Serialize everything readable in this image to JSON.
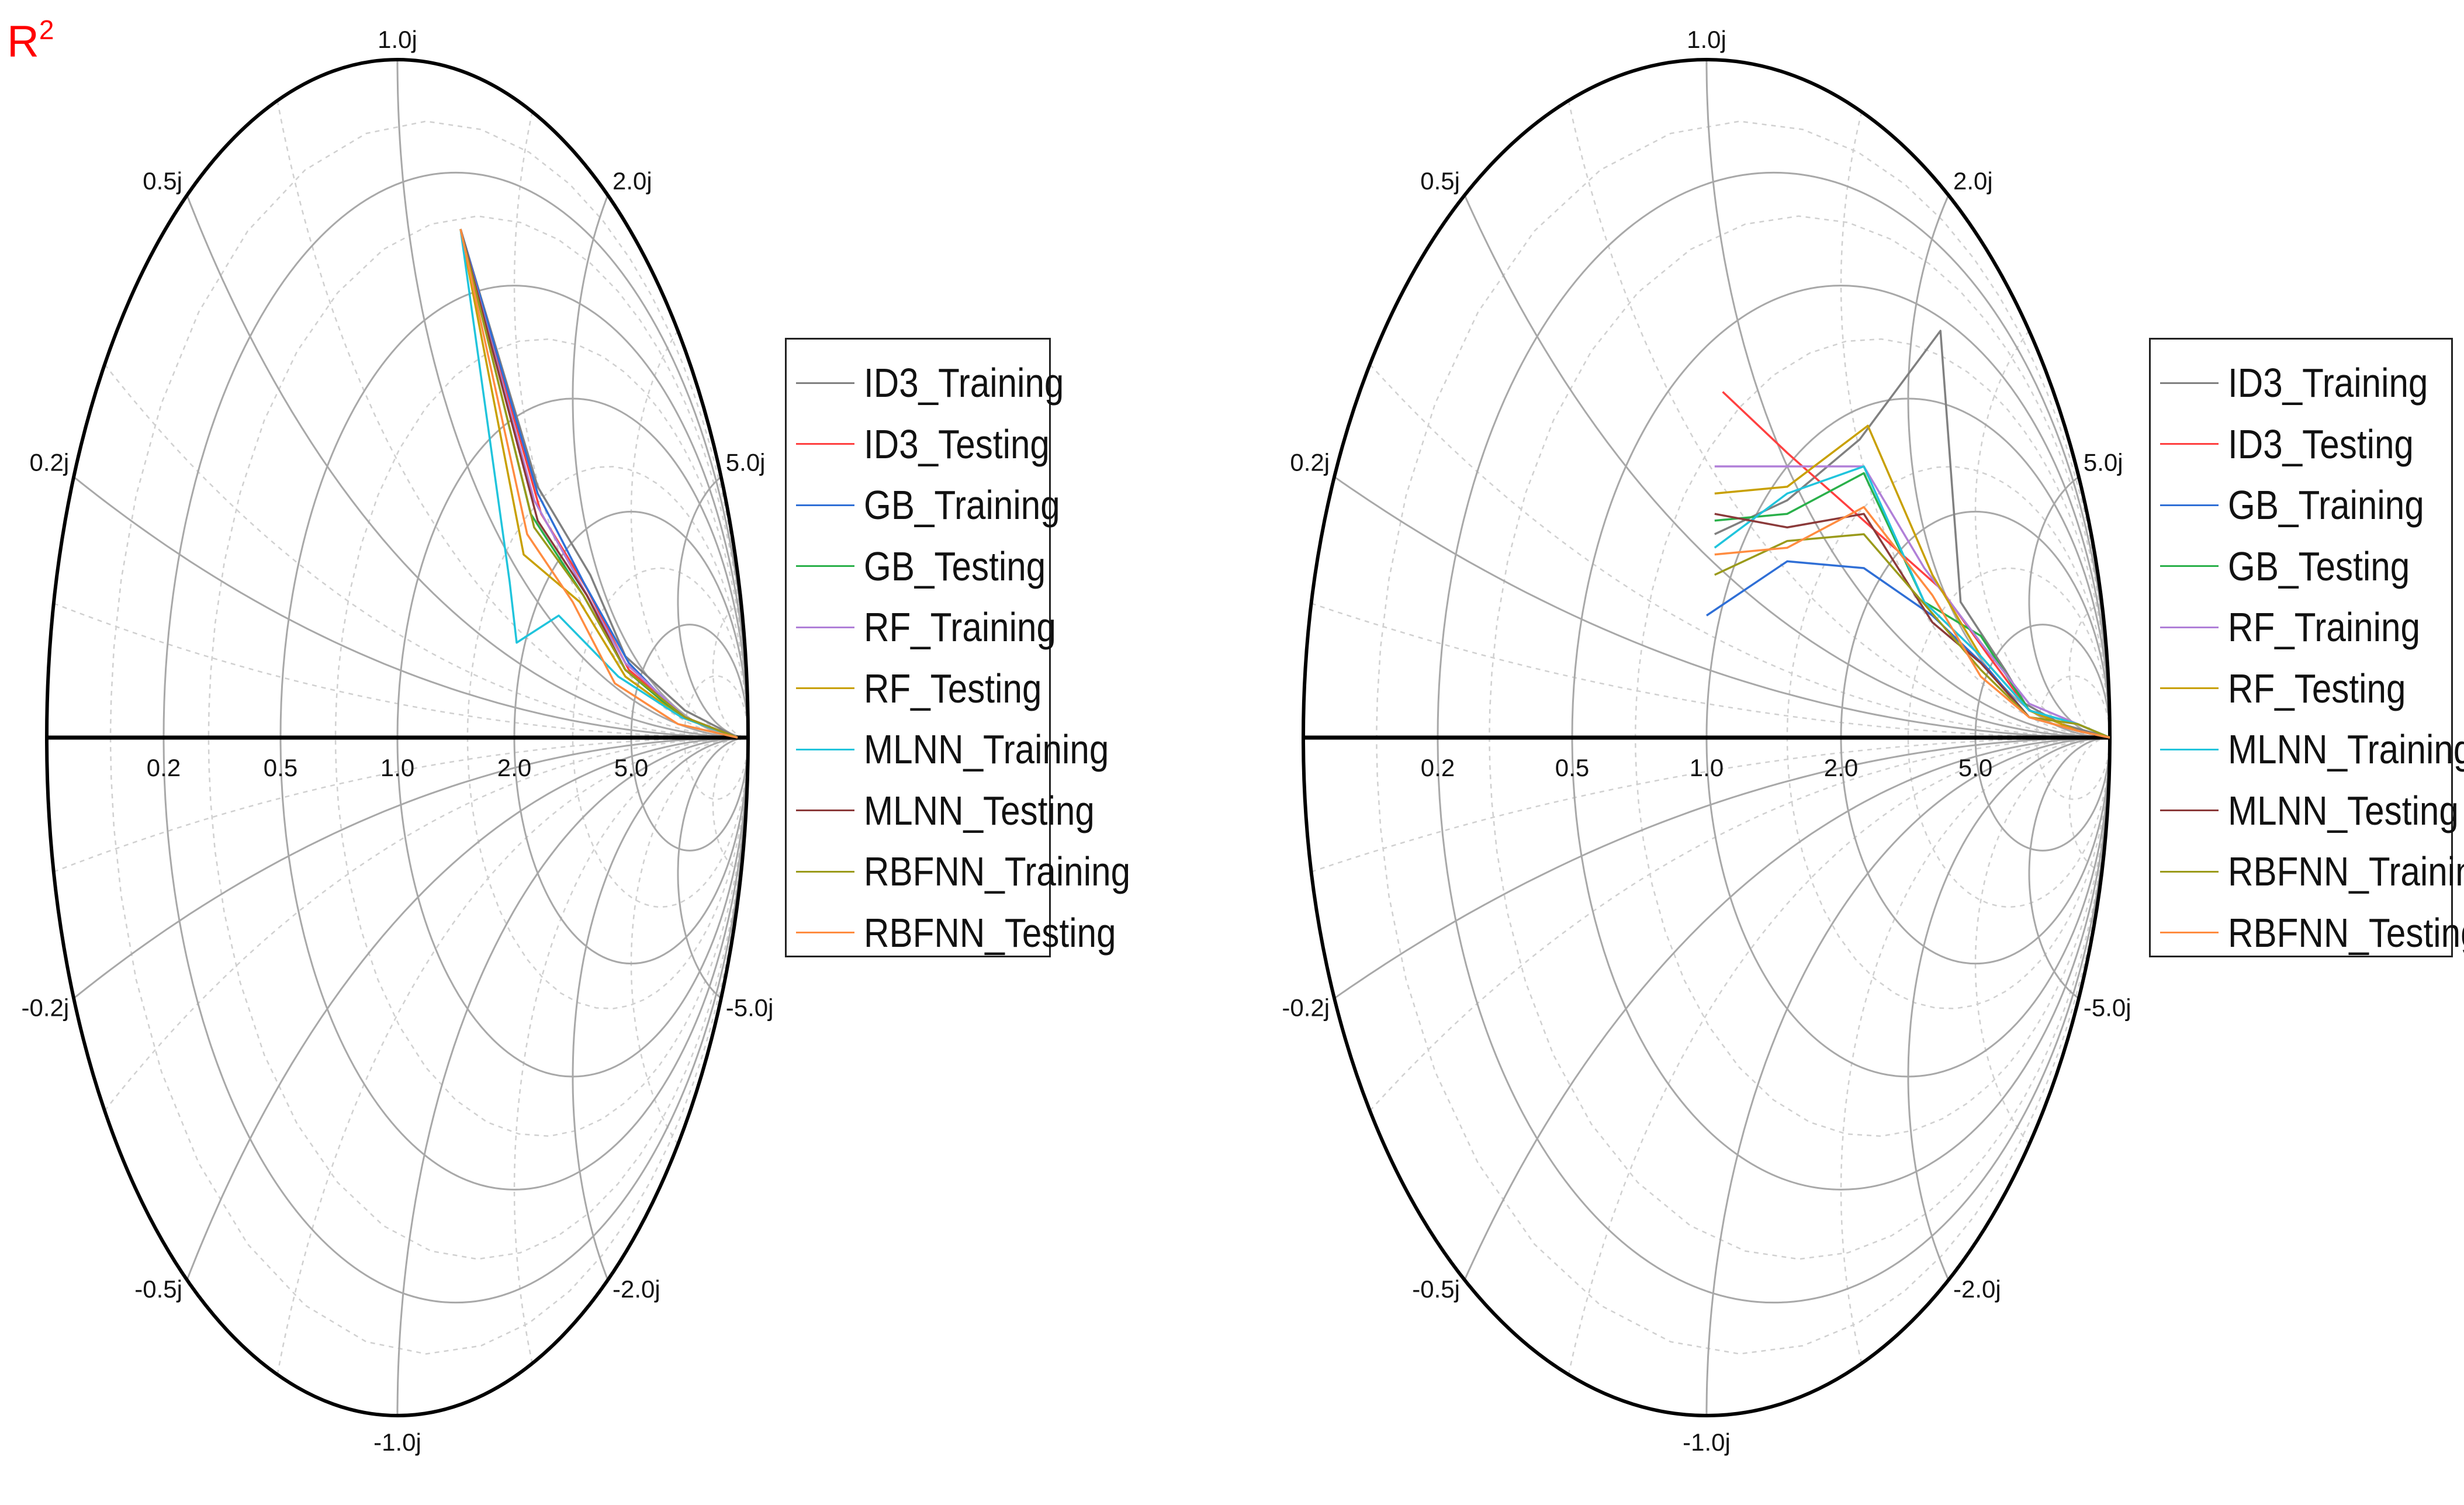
{
  "corner_label": {
    "base": "R",
    "sup": "2"
  },
  "chart_data": [
    {
      "type": "smith",
      "title": "",
      "resistance_circles": [
        0.2,
        0.5,
        1.0,
        2.0,
        5.0
      ],
      "reactance_circles": [
        0.2,
        0.5,
        1.0,
        2.0,
        5.0,
        -0.2,
        -0.5,
        -1.0,
        -2.0,
        -5.0
      ],
      "resistance_labels": [
        "0.2",
        "0.5",
        "1.0",
        "2.0",
        "5.0"
      ],
      "reactance_labels": [
        "1.0j",
        "0.5j",
        "2.0j",
        "0.2j",
        "5.0j",
        "-0.2j",
        "-5.0j",
        "-0.5j",
        "-2.0j",
        "-1.0j"
      ],
      "grid": true,
      "legend_position": "right",
      "series": [
        {
          "name": "ID3_Training",
          "color": "#808080",
          "points": [
            [
              0.18,
              0.75
            ],
            [
              0.4,
              0.37
            ],
            [
              0.55,
              0.24
            ],
            [
              0.65,
              0.12
            ],
            [
              0.82,
              0.04
            ],
            [
              0.97,
              0.0
            ]
          ]
        },
        {
          "name": "ID3_Testing",
          "color": "#ff4040",
          "points": [
            [
              0.18,
              0.75
            ],
            [
              0.41,
              0.33
            ],
            [
              0.54,
              0.22
            ],
            [
              0.66,
              0.1
            ],
            [
              0.82,
              0.03
            ],
            [
              0.97,
              0.0
            ]
          ]
        },
        {
          "name": "GB_Training",
          "color": "#2f6fd6",
          "points": [
            [
              0.18,
              0.75
            ],
            [
              0.4,
              0.36
            ],
            [
              0.53,
              0.23
            ],
            [
              0.66,
              0.11
            ],
            [
              0.81,
              0.03
            ],
            [
              0.97,
              0.0
            ]
          ]
        },
        {
          "name": "GB_Testing",
          "color": "#2ab04a",
          "points": [
            [
              0.18,
              0.75
            ],
            [
              0.38,
              0.33
            ],
            [
              0.53,
              0.21
            ],
            [
              0.65,
              0.1
            ],
            [
              0.81,
              0.03
            ],
            [
              0.97,
              0.0
            ]
          ]
        },
        {
          "name": "RF_Training",
          "color": "#b07fd8",
          "points": [
            [
              0.18,
              0.75
            ],
            [
              0.39,
              0.35
            ],
            [
              0.53,
              0.22
            ],
            [
              0.65,
              0.11
            ],
            [
              0.82,
              0.03
            ],
            [
              0.97,
              0.0
            ]
          ]
        },
        {
          "name": "RF_Testing",
          "color": "#c8a000",
          "points": [
            [
              0.18,
              0.75
            ],
            [
              0.36,
              0.27
            ],
            [
              0.52,
              0.2
            ],
            [
              0.65,
              0.09
            ],
            [
              0.81,
              0.03
            ],
            [
              0.97,
              0.0
            ]
          ]
        },
        {
          "name": "MLNN_Training",
          "color": "#20c4dc",
          "points": [
            [
              0.18,
              0.75
            ],
            [
              0.32,
              0.23
            ],
            [
              0.34,
              0.14
            ],
            [
              0.46,
              0.18
            ],
            [
              0.63,
              0.09
            ],
            [
              0.81,
              0.03
            ],
            [
              0.97,
              0.0
            ]
          ]
        },
        {
          "name": "MLNN_Testing",
          "color": "#8b3a3a",
          "points": [
            [
              0.18,
              0.75
            ],
            [
              0.4,
              0.32
            ],
            [
              0.54,
              0.21
            ],
            [
              0.65,
              0.1
            ],
            [
              0.82,
              0.03
            ],
            [
              0.97,
              0.0
            ]
          ]
        },
        {
          "name": "RBFNN_Training",
          "color": "#9a9a1a",
          "points": [
            [
              0.18,
              0.75
            ],
            [
              0.39,
              0.31
            ],
            [
              0.53,
              0.21
            ],
            [
              0.65,
              0.1
            ],
            [
              0.82,
              0.03
            ],
            [
              0.97,
              0.0
            ]
          ]
        },
        {
          "name": "RBFNN_Testing",
          "color": "#ff8c40",
          "points": [
            [
              0.18,
              0.75
            ],
            [
              0.37,
              0.3
            ],
            [
              0.5,
              0.2
            ],
            [
              0.62,
              0.08
            ],
            [
              0.8,
              0.02
            ],
            [
              0.97,
              0.0
            ]
          ]
        }
      ]
    },
    {
      "type": "smith",
      "title": "",
      "resistance_circles": [
        0.2,
        0.5,
        1.0,
        2.0,
        5.0
      ],
      "reactance_circles": [
        0.2,
        0.5,
        1.0,
        2.0,
        5.0,
        -0.2,
        -0.5,
        -1.0,
        -2.0,
        -5.0
      ],
      "resistance_labels": [
        "0.2",
        "0.5",
        "1.0",
        "2.0",
        "5.0"
      ],
      "reactance_labels": [
        "1.0j",
        "0.5j",
        "2.0j",
        "0.2j",
        "5.0j",
        "-0.2j",
        "-5.0j",
        "-0.5j",
        "-2.0j",
        "-1.0j"
      ],
      "grid": true,
      "legend_position": "right",
      "series": [
        {
          "name": "ID3_Training",
          "color": "#808080",
          "points": [
            [
              0.02,
              0.3
            ],
            [
              0.2,
              0.35
            ],
            [
              0.38,
              0.44
            ],
            [
              0.58,
              0.6
            ],
            [
              0.63,
              0.2
            ],
            [
              0.74,
              0.1
            ],
            [
              0.79,
              0.05
            ],
            [
              0.88,
              0.02
            ],
            [
              1.0,
              0.0
            ]
          ]
        },
        {
          "name": "ID3_Testing",
          "color": "#ff4040",
          "points": [
            [
              0.04,
              0.51
            ],
            [
              0.2,
              0.42
            ],
            [
              0.39,
              0.32
            ],
            [
              0.58,
              0.22
            ],
            [
              0.7,
              0.12
            ],
            [
              0.8,
              0.04
            ],
            [
              0.92,
              0.01
            ],
            [
              1.0,
              0.0
            ]
          ]
        },
        {
          "name": "GB_Training",
          "color": "#2f6fd6",
          "points": [
            [
              0.0,
              0.18
            ],
            [
              0.2,
              0.26
            ],
            [
              0.39,
              0.25
            ],
            [
              0.56,
              0.18
            ],
            [
              0.7,
              0.1
            ],
            [
              0.8,
              0.03
            ],
            [
              0.92,
              0.01
            ],
            [
              1.0,
              0.0
            ]
          ]
        },
        {
          "name": "GB_Testing",
          "color": "#2ab04a",
          "points": [
            [
              0.02,
              0.32
            ],
            [
              0.2,
              0.33
            ],
            [
              0.39,
              0.39
            ],
            [
              0.54,
              0.2
            ],
            [
              0.68,
              0.15
            ],
            [
              0.8,
              0.04
            ],
            [
              0.92,
              0.02
            ],
            [
              1.0,
              0.0
            ]
          ]
        },
        {
          "name": "RF_Training",
          "color": "#b07fd8",
          "points": [
            [
              0.02,
              0.4
            ],
            [
              0.2,
              0.4
            ],
            [
              0.39,
              0.4
            ],
            [
              0.54,
              0.25
            ],
            [
              0.68,
              0.14
            ],
            [
              0.8,
              0.05
            ],
            [
              0.92,
              0.02
            ],
            [
              1.0,
              0.0
            ]
          ]
        },
        {
          "name": "RF_Testing",
          "color": "#c8a000",
          "points": [
            [
              0.02,
              0.36
            ],
            [
              0.2,
              0.37
            ],
            [
              0.4,
              0.46
            ],
            [
              0.56,
              0.24
            ],
            [
              0.68,
              0.12
            ],
            [
              0.8,
              0.04
            ],
            [
              0.92,
              0.01
            ],
            [
              1.0,
              0.0
            ]
          ]
        },
        {
          "name": "MLNN_Training",
          "color": "#20c4dc",
          "points": [
            [
              0.02,
              0.28
            ],
            [
              0.2,
              0.36
            ],
            [
              0.39,
              0.4
            ],
            [
              0.54,
              0.2
            ],
            [
              0.68,
              0.12
            ],
            [
              0.8,
              0.04
            ],
            [
              0.92,
              0.02
            ],
            [
              1.0,
              0.0
            ]
          ]
        },
        {
          "name": "MLNN_Testing",
          "color": "#8b3a3a",
          "points": [
            [
              0.02,
              0.33
            ],
            [
              0.2,
              0.31
            ],
            [
              0.39,
              0.33
            ],
            [
              0.56,
              0.17
            ],
            [
              0.68,
              0.11
            ],
            [
              0.8,
              0.03
            ],
            [
              0.92,
              0.01
            ],
            [
              1.0,
              0.0
            ]
          ]
        },
        {
          "name": "RBFNN_Training",
          "color": "#9a9a1a",
          "points": [
            [
              0.02,
              0.24
            ],
            [
              0.2,
              0.29
            ],
            [
              0.39,
              0.3
            ],
            [
              0.55,
              0.19
            ],
            [
              0.68,
              0.1
            ],
            [
              0.8,
              0.03
            ],
            [
              0.92,
              0.02
            ],
            [
              1.0,
              0.0
            ]
          ]
        },
        {
          "name": "RBFNN_Testing",
          "color": "#ff8c40",
          "points": [
            [
              0.02,
              0.27
            ],
            [
              0.2,
              0.28
            ],
            [
              0.39,
              0.34
            ],
            [
              0.56,
              0.21
            ],
            [
              0.68,
              0.09
            ],
            [
              0.8,
              0.03
            ],
            [
              0.92,
              0.01
            ],
            [
              1.0,
              0.0
            ]
          ]
        }
      ]
    }
  ]
}
